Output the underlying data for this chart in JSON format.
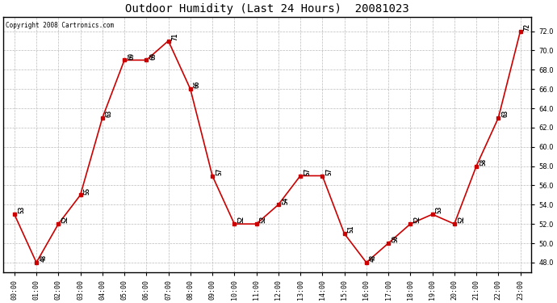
{
  "title": "Outdoor Humidity (Last 24 Hours)  20081023",
  "copyright": "Copyright 2008 Cartronics.com",
  "x_labels": [
    "00:00",
    "01:00",
    "02:00",
    "03:00",
    "04:00",
    "05:00",
    "06:00",
    "07:00",
    "08:00",
    "09:00",
    "10:00",
    "11:00",
    "12:00",
    "13:00",
    "14:00",
    "15:00",
    "16:00",
    "17:00",
    "18:00",
    "19:00",
    "20:00",
    "21:00",
    "22:00",
    "23:00"
  ],
  "y_values": [
    53,
    48,
    52,
    55,
    63,
    69,
    69,
    71,
    66,
    57,
    52,
    52,
    54,
    57,
    57,
    51,
    48,
    50,
    52,
    53,
    52,
    58,
    63,
    72
  ],
  "line_color": "#cc0000",
  "marker": "s",
  "marker_size": 2.5,
  "ylim": [
    47,
    73.5
  ],
  "yticks": [
    48.0,
    50.0,
    52.0,
    54.0,
    56.0,
    58.0,
    60.0,
    62.0,
    64.0,
    66.0,
    68.0,
    70.0,
    72.0
  ],
  "background_color": "#ffffff",
  "grid_color": "#bbbbbb",
  "title_fontsize": 10,
  "tick_fontsize": 6,
  "annotation_fontsize": 5.5,
  "copyright_fontsize": 5.5
}
